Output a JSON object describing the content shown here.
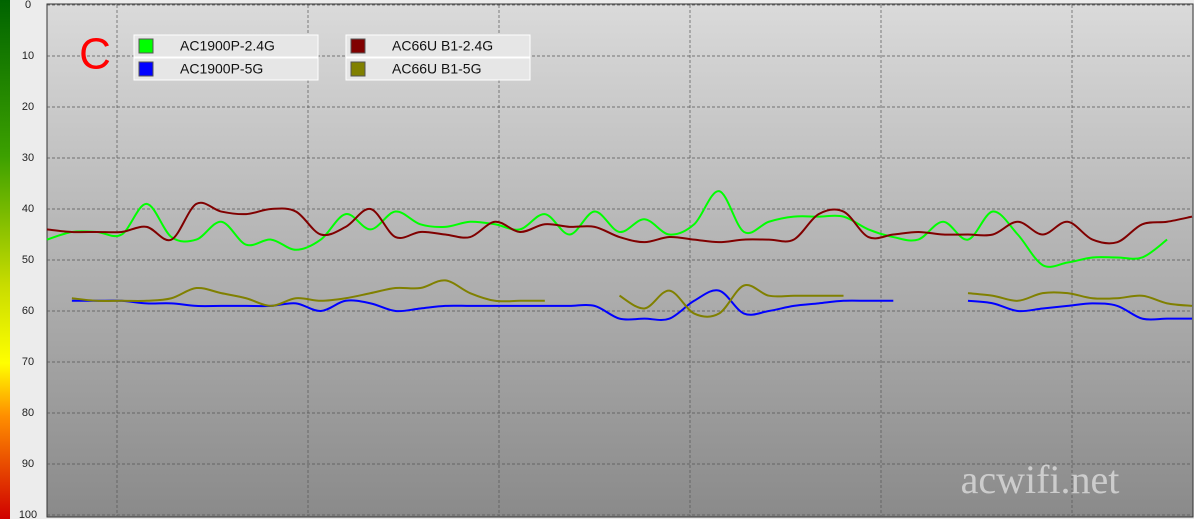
{
  "chart_data": {
    "type": "line",
    "annotation": "C",
    "watermark": "acwifi.net",
    "categories": [
      null,
      null,
      null,
      null,
      null,
      null,
      null,
      null,
      null,
      null,
      null,
      null,
      null,
      null,
      null,
      null,
      null,
      null,
      null,
      null,
      null,
      null,
      null,
      null,
      null,
      null,
      null,
      null,
      null,
      null,
      null,
      null,
      null,
      null,
      null,
      null,
      null,
      null,
      null,
      null,
      null,
      null,
      null,
      null,
      null,
      null,
      null
    ],
    "series": [
      {
        "name": "AC1900P-2.4G",
        "color": "#00ff00",
        "values": [
          46,
          44.5,
          44.5,
          45,
          39,
          45.5,
          46,
          42.5,
          47,
          46,
          48,
          46,
          41,
          44,
          40.5,
          43,
          43.5,
          42.5,
          43,
          44,
          41,
          45,
          40.5,
          44.5,
          42,
          45,
          43,
          36.5,
          44.5,
          42.5,
          41.5,
          41.5,
          41.5,
          44,
          45.5,
          46,
          42.5,
          46,
          40.5,
          45,
          51,
          50.5,
          49.5,
          49.5,
          49.5,
          46,
          null
        ]
      },
      {
        "name": "AC1900P-5G",
        "color": "#0000ff",
        "values": [
          null,
          58,
          58,
          58,
          58.5,
          58.5,
          59,
          59,
          59,
          59,
          58.5,
          60,
          58,
          58.5,
          60,
          59.5,
          59,
          59,
          59,
          59,
          59,
          59,
          59,
          61.5,
          61.5,
          61.5,
          58,
          56,
          60.5,
          60,
          59,
          58.5,
          58,
          58,
          58,
          null,
          null,
          58,
          58.5,
          60,
          59.5,
          59,
          58.5,
          59,
          61.5,
          61.5,
          61.5
        ]
      },
      {
        "name": "AC66U B1-2.4G",
        "color": "#800000",
        "values": [
          44,
          44.5,
          44.5,
          44.5,
          43.5,
          46,
          39,
          40.5,
          41,
          40,
          40.5,
          45,
          43.5,
          40,
          45.5,
          44.5,
          45,
          45.5,
          42.5,
          44.5,
          43,
          43.5,
          43.5,
          45.5,
          46.5,
          45.5,
          46,
          46.5,
          46,
          46,
          46,
          41,
          40.5,
          45.5,
          45,
          44.5,
          45,
          45,
          45,
          42.5,
          45,
          42.5,
          46,
          46.5,
          43,
          42.5,
          41.5
        ]
      },
      {
        "name": "AC66U B1-5G",
        "color": "#808000",
        "values": [
          null,
          57.5,
          58,
          58,
          58,
          57.5,
          55.5,
          56.5,
          57.5,
          59,
          57.5,
          58,
          57.5,
          56.5,
          55.5,
          55.5,
          54,
          56.5,
          58,
          58,
          58,
          null,
          null,
          57,
          59.5,
          56,
          60.5,
          60.5,
          55,
          57,
          57,
          57,
          57,
          null,
          null,
          null,
          null,
          56.5,
          57,
          58,
          56.5,
          56.5,
          57.5,
          57.5,
          57,
          58.5,
          59
        ]
      }
    ],
    "ylim": [
      100,
      0
    ],
    "yticks": [
      0,
      10,
      20,
      30,
      40,
      50,
      60,
      70,
      80,
      90,
      100
    ],
    "grid": true
  }
}
